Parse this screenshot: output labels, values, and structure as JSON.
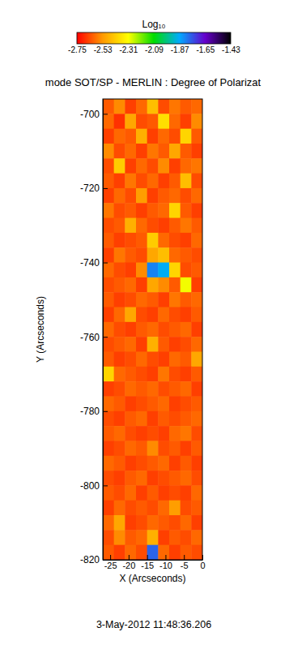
{
  "chart_data": {
    "type": "heatmap",
    "title": "mode SOT/SP - MERLIN : Degree of Polarizat",
    "x_label": "X (Arcseconds)",
    "y_label": "Y (Arcseconds)",
    "annotation": "3-May-2012 11:48:36.206",
    "xlim": [
      -27,
      0
    ],
    "xticks": [
      -25,
      -20,
      -15,
      -10,
      -5,
      0
    ],
    "ylim": [
      -820,
      -696
    ],
    "yticks": [
      -700,
      -720,
      -740,
      -760,
      -780,
      -800,
      -820
    ],
    "x": [
      -25.5,
      -22.5,
      -19.5,
      -16.5,
      -13.5,
      -10.5,
      -7.5,
      -4.5,
      -1.5
    ],
    "y": [
      -698,
      -702,
      -706,
      -710,
      -714,
      -718,
      -722,
      -726,
      -730,
      -734,
      -738,
      -742,
      -746,
      -750,
      -754,
      -758,
      -762,
      -766,
      -770,
      -774,
      -778,
      -782,
      -786,
      -790,
      -794,
      -798,
      -802,
      -806,
      -810,
      -814,
      -818
    ],
    "z": [
      [
        -2.62,
        -2.55,
        -2.66,
        -2.6,
        -2.45,
        -2.64,
        -2.58,
        -2.62,
        -2.6
      ],
      [
        -2.6,
        -2.68,
        -2.5,
        -2.64,
        -2.62,
        -2.38,
        -2.6,
        -2.66,
        -2.55
      ],
      [
        -2.66,
        -2.6,
        -2.62,
        -2.48,
        -2.66,
        -2.6,
        -2.64,
        -2.4,
        -2.62
      ],
      [
        -2.55,
        -2.64,
        -2.6,
        -2.66,
        -2.58,
        -2.62,
        -2.5,
        -2.62,
        -2.66
      ],
      [
        -2.64,
        -2.42,
        -2.66,
        -2.6,
        -2.64,
        -2.55,
        -2.66,
        -2.6,
        -2.58
      ],
      [
        -2.62,
        -2.66,
        -2.58,
        -2.64,
        -2.6,
        -2.66,
        -2.62,
        -2.45,
        -2.64
      ],
      [
        -2.66,
        -2.6,
        -2.64,
        -2.52,
        -2.66,
        -2.62,
        -2.6,
        -2.64,
        -2.6
      ],
      [
        -2.58,
        -2.64,
        -2.62,
        -2.66,
        -2.62,
        -2.6,
        -2.4,
        -2.62,
        -2.66
      ],
      [
        -2.64,
        -2.62,
        -2.48,
        -2.6,
        -2.64,
        -2.66,
        -2.62,
        -2.58,
        -2.62
      ],
      [
        -2.62,
        -2.66,
        -2.64,
        -2.62,
        -2.42,
        -2.6,
        -2.64,
        -2.66,
        -2.6
      ],
      [
        -2.66,
        -2.58,
        -2.62,
        -2.64,
        -2.5,
        -2.45,
        -2.6,
        -2.62,
        -2.64
      ],
      [
        -2.6,
        -2.64,
        -2.66,
        -2.55,
        -1.82,
        -1.88,
        -2.4,
        -2.64,
        -2.62
      ],
      [
        -2.64,
        -2.62,
        -2.6,
        -2.66,
        -2.5,
        -2.55,
        -2.62,
        -2.3,
        -2.66
      ],
      [
        -2.62,
        -2.66,
        -2.64,
        -2.6,
        -2.62,
        -2.66,
        -2.58,
        -2.62,
        -2.6
      ],
      [
        -2.66,
        -2.6,
        -2.5,
        -2.64,
        -2.66,
        -2.6,
        -2.64,
        -2.66,
        -2.62
      ],
      [
        -2.6,
        -2.64,
        -2.66,
        -2.62,
        -2.6,
        -2.64,
        -2.62,
        -2.6,
        -2.66
      ],
      [
        -2.64,
        -2.62,
        -2.6,
        -2.66,
        -2.48,
        -2.62,
        -2.66,
        -2.64,
        -2.6
      ],
      [
        -2.62,
        -2.66,
        -2.64,
        -2.6,
        -2.64,
        -2.66,
        -2.6,
        -2.62,
        -2.5
      ],
      [
        -2.4,
        -2.6,
        -2.62,
        -2.64,
        -2.66,
        -2.58,
        -2.64,
        -2.66,
        -2.62
      ],
      [
        -2.66,
        -2.64,
        -2.6,
        -2.62,
        -2.6,
        -2.64,
        -2.62,
        -2.6,
        -2.66
      ],
      [
        -2.6,
        -2.62,
        -2.66,
        -2.64,
        -2.62,
        -2.6,
        -2.66,
        -2.64,
        -2.62
      ],
      [
        -2.64,
        -2.66,
        -2.62,
        -2.6,
        -2.66,
        -2.62,
        -2.64,
        -2.62,
        -2.6
      ],
      [
        -2.62,
        -2.6,
        -2.64,
        -2.66,
        -2.64,
        -2.66,
        -2.6,
        -2.58,
        -2.64
      ],
      [
        -2.66,
        -2.64,
        -2.6,
        -2.62,
        -2.55,
        -2.64,
        -2.62,
        -2.66,
        -2.62
      ],
      [
        -2.6,
        -2.62,
        -2.66,
        -2.64,
        -2.62,
        -2.6,
        -2.66,
        -2.62,
        -2.66
      ],
      [
        -2.64,
        -2.66,
        -2.62,
        -2.6,
        -2.66,
        -2.64,
        -2.62,
        -2.6,
        -2.64
      ],
      [
        -2.62,
        -2.64,
        -2.6,
        -2.66,
        -2.62,
        -2.66,
        -2.64,
        -2.66,
        -2.6
      ],
      [
        -2.66,
        -2.6,
        -2.64,
        -2.62,
        -2.64,
        -2.6,
        -2.52,
        -2.64,
        -2.62
      ],
      [
        -2.6,
        -2.5,
        -2.66,
        -2.64,
        -2.6,
        -2.62,
        -2.64,
        -2.6,
        -2.66
      ],
      [
        -2.64,
        -2.55,
        -2.62,
        -2.6,
        -2.48,
        -2.66,
        -2.62,
        -2.64,
        -2.6
      ],
      [
        -2.62,
        -2.66,
        -2.6,
        -2.64,
        -1.78,
        -2.6,
        -2.66,
        -2.62,
        -2.64
      ]
    ],
    "colorbar": {
      "label": "Log₁₀",
      "range": [
        -2.75,
        -1.43
      ],
      "ticks": [
        -2.75,
        -2.53,
        -2.31,
        -2.09,
        -1.87,
        -1.65,
        -1.43
      ]
    }
  }
}
